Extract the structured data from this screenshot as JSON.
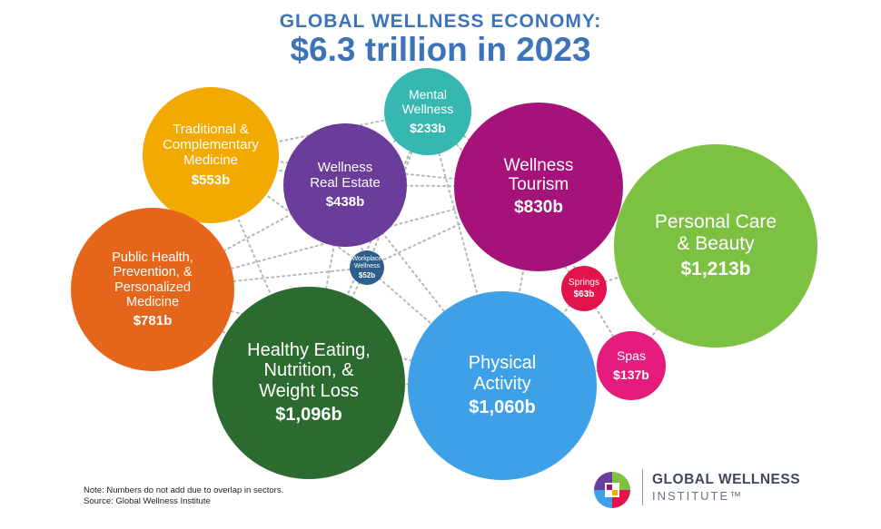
{
  "header": {
    "line1": "GLOBAL WELLNESS ECONOMY:",
    "line2": "$6.3 trillion in 2023"
  },
  "chart_data": {
    "type": "bubble",
    "unit": "billion USD",
    "sectors": [
      {
        "key": "traditional",
        "label": "Traditional &\nComplementary\nMedicine",
        "value_label": "$553b",
        "value": 553,
        "color": "#f2a900"
      },
      {
        "key": "real_estate",
        "label": "Wellness\nReal Estate",
        "value_label": "$438b",
        "value": 438,
        "color": "#6a3d9a"
      },
      {
        "key": "mental",
        "label": "Mental\nWellness",
        "value_label": "$233b",
        "value": 233,
        "color": "#36b7b0"
      },
      {
        "key": "tourism",
        "label": "Wellness\nTourism",
        "value_label": "$830b",
        "value": 830,
        "color": "#a4127a"
      },
      {
        "key": "personal_care",
        "label": "Personal Care\n& Beauty",
        "value_label": "$1,213b",
        "value": 1213,
        "color": "#7cc142"
      },
      {
        "key": "public_health",
        "label": "Public Health,\nPrevention, &\nPersonalized\nMedicine",
        "value_label": "$781b",
        "value": 781,
        "color": "#e5661a"
      },
      {
        "key": "workplace",
        "label": "Workplace\nWellness",
        "value_label": "$52b",
        "value": 52,
        "color": "#2e5f8c"
      },
      {
        "key": "springs",
        "label": "Springs",
        "value_label": "$63b",
        "value": 63,
        "color": "#e3144b"
      },
      {
        "key": "healthy_eating",
        "label": "Healthy Eating,\nNutrition, &\nWeight Loss",
        "value_label": "$1,096b",
        "value": 1096,
        "color": "#2c6b2f"
      },
      {
        "key": "physical",
        "label": "Physical\nActivity",
        "value_label": "$1,060b",
        "value": 1060,
        "color": "#3ea0e6"
      },
      {
        "key": "spas",
        "label": "Spas",
        "value_label": "$137b",
        "value": 137,
        "color": "#e51c7d"
      }
    ]
  },
  "footer": {
    "note": "Note: Numbers do not add due to overlap in sectors.",
    "source": "Source: Global Wellness Institute"
  },
  "logo": {
    "name": "GLOBAL WELLNESS",
    "sub": "INSTITUTE™"
  }
}
